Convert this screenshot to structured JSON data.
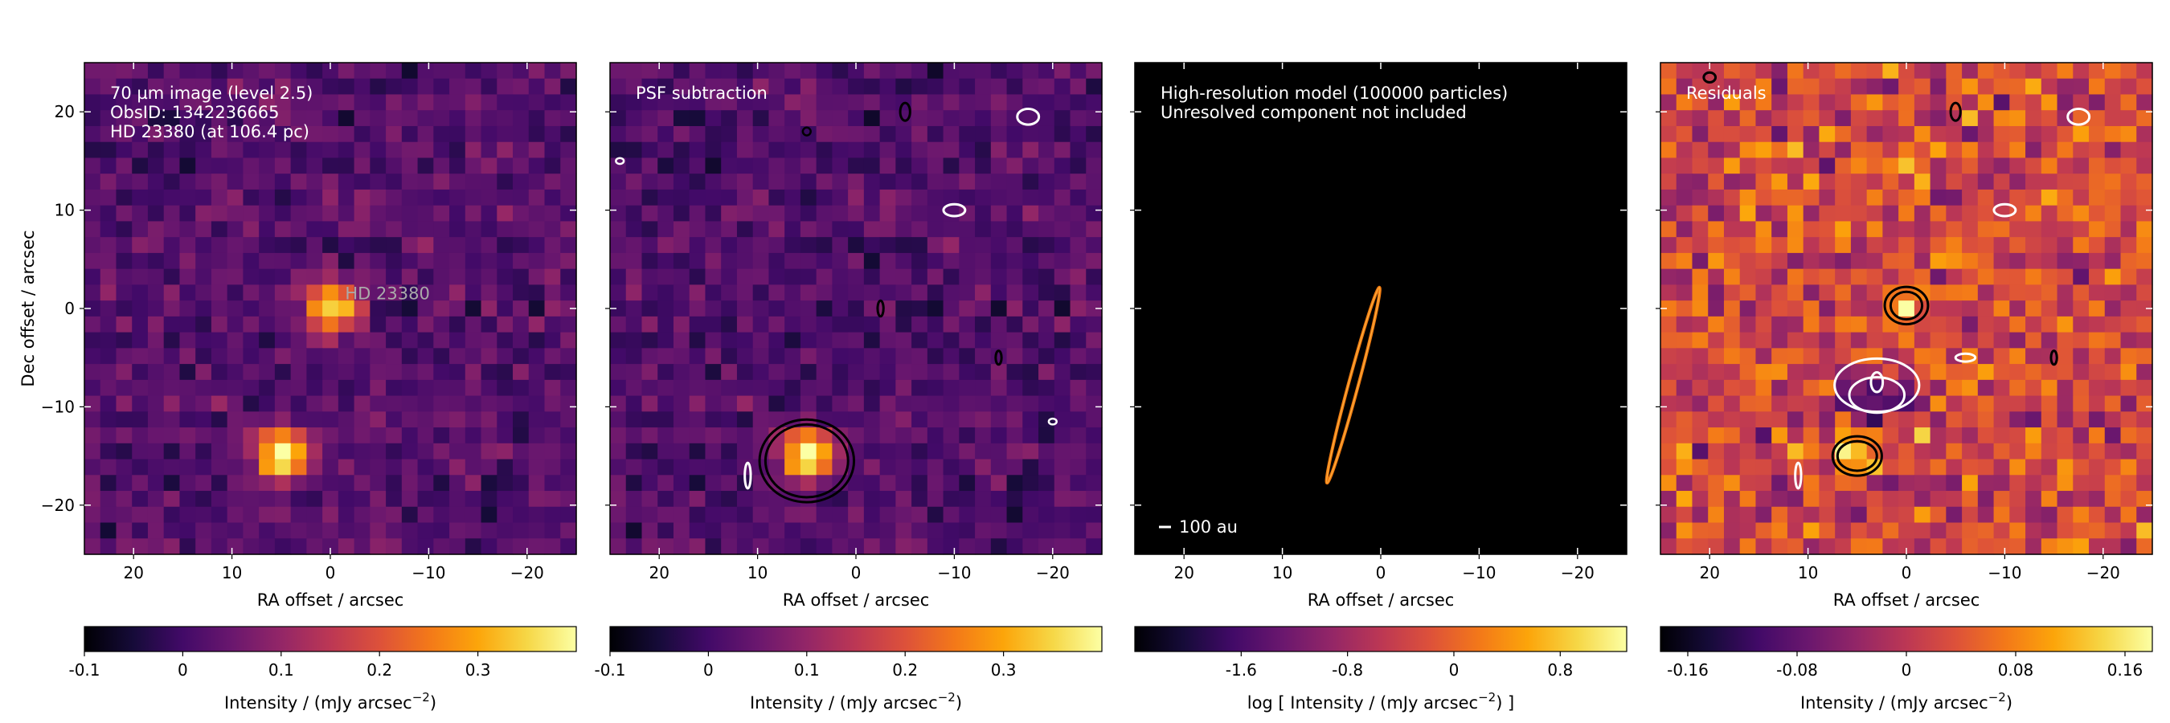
{
  "chart_data": [
    {
      "type": "heatmap",
      "title": "",
      "xlabel": "RA offset / arcsec",
      "ylabel": "Dec offset / arcsec",
      "xlim": [
        25,
        -25
      ],
      "ylim": [
        -25,
        25
      ],
      "xticks": [
        20,
        10,
        0,
        -10,
        -20
      ],
      "yticks": [
        20,
        10,
        0,
        -10,
        -20
      ],
      "colormap": "inferno",
      "annotations": [
        "70 µm image (level 2.5)",
        "ObsID: 1342236665",
        "HD 23380 (at 106.4 pc)"
      ],
      "source_label": {
        "text": "HD  23380",
        "x": -1.5,
        "y": 1.5
      },
      "sources": [
        {
          "x": 0,
          "y": 0,
          "peak": 0.38
        },
        {
          "x": -5,
          "y": -15,
          "peak": 0.4
        }
      ],
      "colorbar": {
        "label": "Intensity / (mJy arcsec$^{-2}$)",
        "ticks": [
          "-0.1",
          "0",
          "0.1",
          "0.2",
          "0.3"
        ],
        "tick_values": [
          -0.1,
          0,
          0.1,
          0.2,
          0.3
        ],
        "range": [
          -0.1,
          0.4
        ]
      },
      "pixel_size_arcsec": 1.6
    },
    {
      "type": "heatmap",
      "title": "",
      "xlabel": "RA offset / arcsec",
      "ylabel": "",
      "xlim": [
        25,
        -25
      ],
      "ylim": [
        -25,
        25
      ],
      "xticks": [
        20,
        10,
        0,
        -10,
        -20
      ],
      "colormap": "inferno",
      "annotations": [
        "PSF subtraction"
      ],
      "sources": [
        {
          "x": -5,
          "y": -15,
          "peak": 0.4
        }
      ],
      "contours": "residual significance (black positive, white negative)",
      "colorbar": {
        "label": "Intensity / (mJy arcsec$^{-2}$)",
        "ticks": [
          "-0.1",
          "0",
          "0.1",
          "0.2",
          "0.3"
        ],
        "tick_values": [
          -0.1,
          0,
          0.1,
          0.2,
          0.3
        ],
        "range": [
          -0.1,
          0.4
        ]
      }
    },
    {
      "type": "heatmap",
      "title": "",
      "xlabel": "RA offset / arcsec",
      "ylabel": "",
      "xlim": [
        25,
        -25
      ],
      "ylim": [
        -25,
        25
      ],
      "xticks": [
        20,
        10,
        0,
        -10,
        -20
      ],
      "colormap": "inferno",
      "annotations": [
        "High-resolution model (100000 particles)",
        "Unresolved component not included"
      ],
      "model_ring": {
        "center": [
          2.8,
          -7.8
        ],
        "semi_major": 9.8,
        "semi_minor": 0.5,
        "position_angle_deg": 15
      },
      "scale_bar_label": "100 au",
      "colorbar": {
        "label": "log [ Intensity / (mJy arcsec$^{-2}$) ]",
        "ticks": [
          "-1.6",
          "-0.8",
          "0",
          "0.8"
        ],
        "tick_values": [
          -1.6,
          -0.8,
          0,
          0.8
        ],
        "range": [
          -2.4,
          1.3
        ]
      }
    },
    {
      "type": "heatmap",
      "title": "",
      "xlabel": "RA offset / arcsec",
      "ylabel": "",
      "xlim": [
        25,
        -25
      ],
      "ylim": [
        -25,
        25
      ],
      "xticks": [
        20,
        10,
        0,
        -10,
        -20
      ],
      "colormap": "inferno",
      "annotations": [
        "Residuals"
      ],
      "residual_features": [
        {
          "x": 0,
          "y": 0,
          "value": 0.15
        },
        {
          "x": 5,
          "y": -15,
          "value": 0.15
        },
        {
          "x": 3,
          "y": -9,
          "value": -0.14
        }
      ],
      "colorbar": {
        "label": "Intensity / (mJy arcsec$^{-2}$)",
        "ticks": [
          "-0.16",
          "-0.08",
          "0",
          "0.08",
          "0.16"
        ],
        "tick_values": [
          -0.16,
          -0.08,
          0,
          0.08,
          0.16
        ],
        "range": [
          -0.18,
          0.18
        ]
      }
    }
  ]
}
